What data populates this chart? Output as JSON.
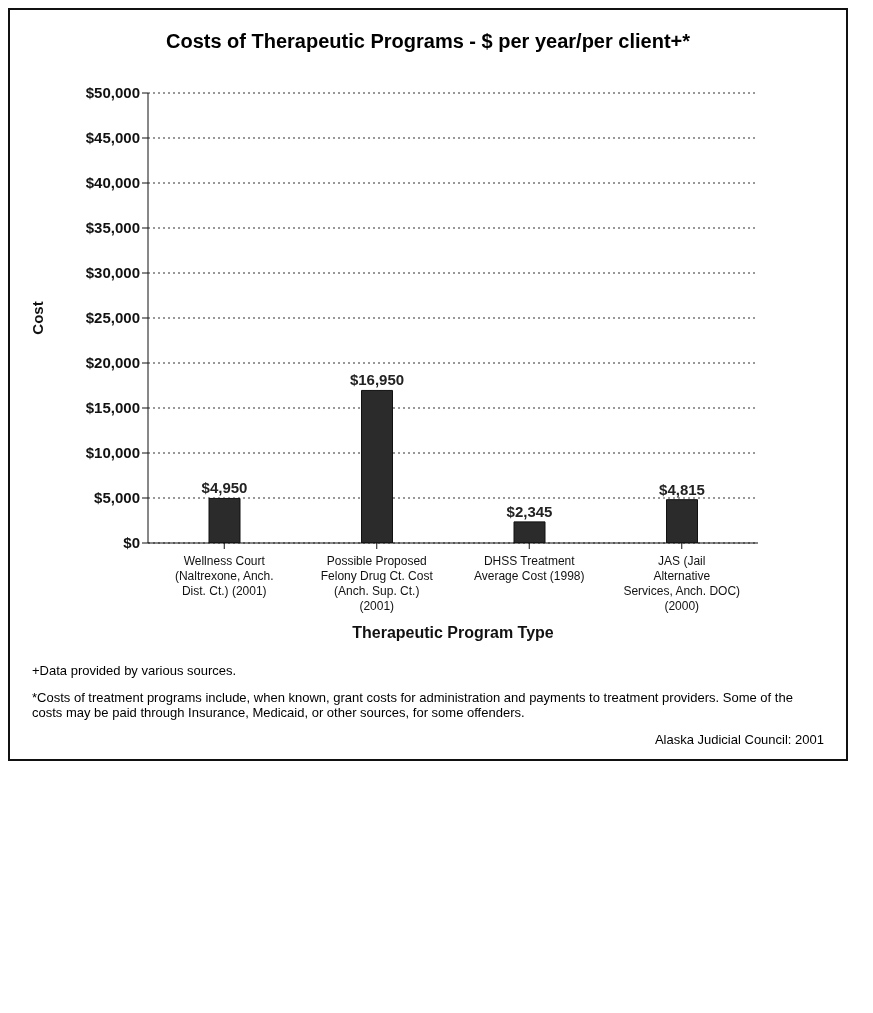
{
  "chart_data": {
    "type": "bar",
    "title": "Costs of Therapeutic Programs - $ per year/per client+*",
    "xlabel": "Therapeutic Program Type",
    "ylabel": "Cost",
    "categories": [
      "Wellness Court (Naltrexone, Anch. Dist. Ct.) (2001)",
      "Possible Proposed Felony Drug Ct. Cost (Anch. Sup. Ct.) (2001)",
      "DHSS Treatment Average Cost (1998)",
      "JAS (Jail Alternative Services, Anch. DOC) (2000)"
    ],
    "values": [
      4950,
      16950,
      2345,
      4815
    ],
    "color": "#2b2b2b",
    "value_labels": [
      "$4,950",
      "$16,950",
      "$2,345",
      "$4,815"
    ],
    "ylim": [
      0,
      50000
    ],
    "yticks": [
      {
        "value": 0,
        "label": "$0"
      },
      {
        "value": 5000,
        "label": "$5,000"
      },
      {
        "value": 10000,
        "label": "$10,000"
      },
      {
        "value": 15000,
        "label": "$15,000"
      },
      {
        "value": 20000,
        "label": "$20,000"
      },
      {
        "value": 25000,
        "label": "$25,000"
      },
      {
        "value": 30000,
        "label": "$30,000"
      },
      {
        "value": 35000,
        "label": "$35,000"
      },
      {
        "value": 40000,
        "label": "$40,000"
      },
      {
        "value": 45000,
        "label": "$45,000"
      },
      {
        "value": 50000,
        "label": "$50,000"
      }
    ],
    "grid": "y",
    "annotations": [
      "+Data provided by various sources.",
      "*Costs of treatment programs include, when known, grant costs for administration and payments to treatment providers. Some of the costs may be paid through Insurance, Medicaid, or other sources, for some offenders.",
      "Alaska Judicial Council: 2001"
    ]
  }
}
